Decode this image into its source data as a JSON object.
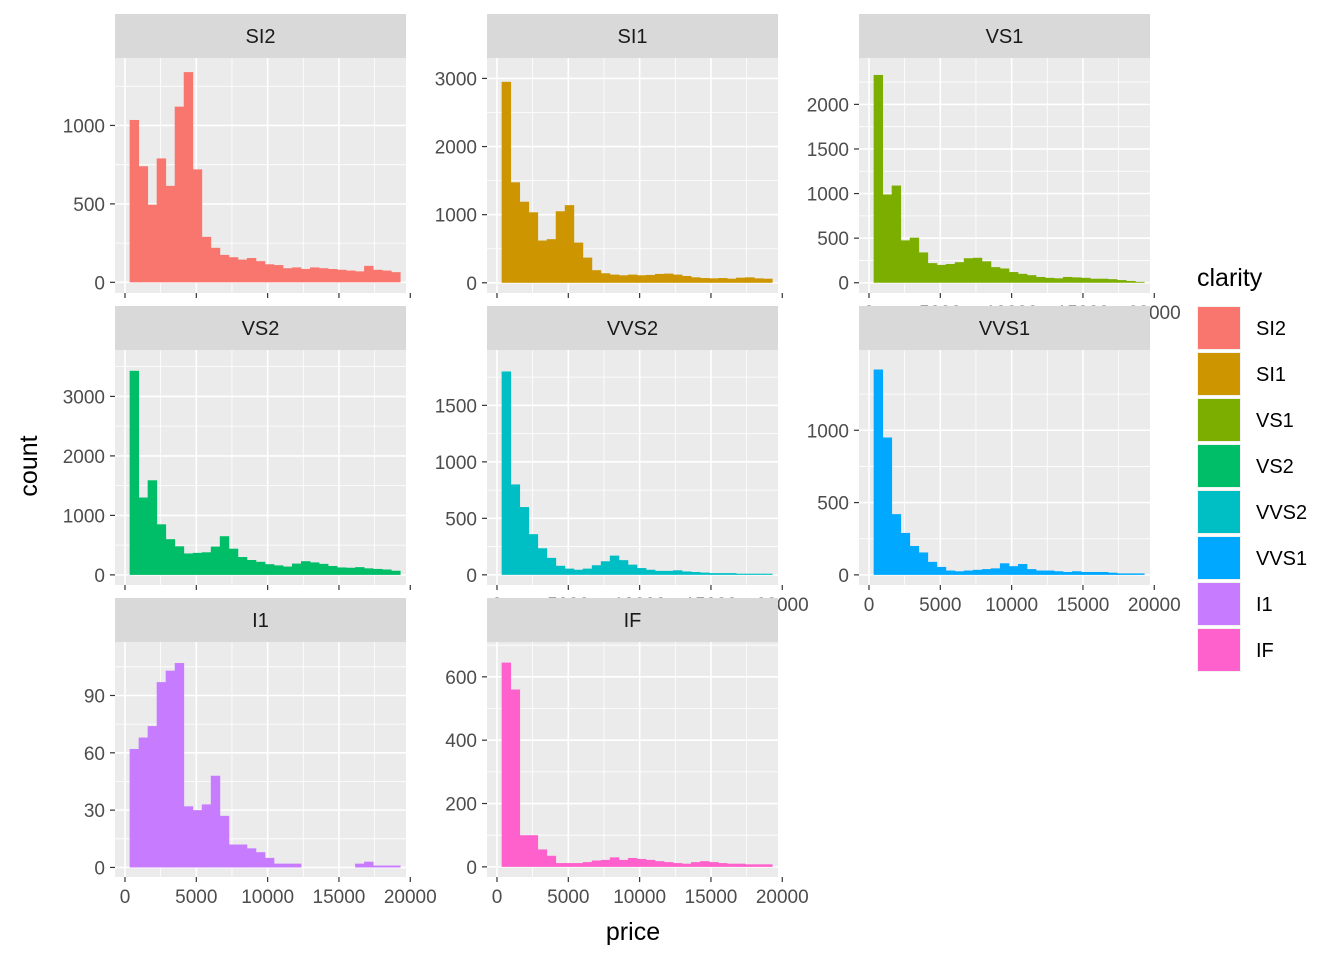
{
  "chart_data": {
    "type": "bar",
    "subtype": "faceted-histogram",
    "xlabel": "price",
    "ylabel": "count",
    "xlim": [
      -700,
      19700
    ],
    "x_ticks": [
      0,
      5000,
      10000,
      15000,
      20000
    ],
    "bin_start": 326,
    "bin_width": 632.2,
    "legend": {
      "title": "clarity",
      "placement": "right",
      "entries": [
        {
          "name": "SI2",
          "color": "#F8766D"
        },
        {
          "name": "SI1",
          "color": "#CD9600"
        },
        {
          "name": "VS1",
          "color": "#7CAE00"
        },
        {
          "name": "VS2",
          "color": "#00BE67"
        },
        {
          "name": "VVS2",
          "color": "#00BFC4"
        },
        {
          "name": "VVS1",
          "color": "#00A9FF"
        },
        {
          "name": "I1",
          "color": "#C77CFF"
        },
        {
          "name": "IF",
          "color": "#FF61CC"
        }
      ]
    },
    "facets": [
      {
        "name": "SI2",
        "color": "#F8766D",
        "ylim": [
          -68,
          1430
        ],
        "y_ticks": [
          0,
          500,
          1000
        ],
        "values": [
          1035,
          740,
          495,
          790,
          615,
          1120,
          1340,
          720,
          290,
          220,
          175,
          160,
          145,
          155,
          135,
          115,
          110,
          90,
          95,
          85,
          95,
          90,
          85,
          80,
          75,
          70,
          105,
          80,
          75,
          65
        ]
      },
      {
        "name": "SI1",
        "color": "#CD9600",
        "ylim": [
          -150,
          3300
        ],
        "y_ticks": [
          0,
          1000,
          2000,
          3000
        ],
        "values": [
          2950,
          1475,
          1190,
          1035,
          620,
          640,
          1050,
          1140,
          590,
          370,
          185,
          140,
          120,
          110,
          120,
          110,
          115,
          130,
          135,
          120,
          100,
          80,
          70,
          65,
          70,
          60,
          75,
          80,
          65,
          60
        ]
      },
      {
        "name": "VS1",
        "color": "#7CAE00",
        "ylim": [
          -115,
          2520
        ],
        "y_ticks": [
          0,
          500,
          1000,
          1500,
          2000
        ],
        "values": [
          2330,
          990,
          1090,
          475,
          505,
          340,
          220,
          200,
          210,
          230,
          275,
          280,
          240,
          175,
          160,
          120,
          100,
          85,
          65,
          55,
          50,
          65,
          60,
          55,
          45,
          45,
          40,
          30,
          20,
          10
        ]
      },
      {
        "name": "VS2",
        "color": "#00BE67",
        "ylim": [
          -170,
          3780
        ],
        "y_ticks": [
          0,
          1000,
          2000,
          3000
        ],
        "values": [
          3430,
          1300,
          1590,
          850,
          600,
          480,
          360,
          370,
          380,
          475,
          650,
          440,
          300,
          250,
          220,
          180,
          160,
          140,
          190,
          230,
          210,
          185,
          150,
          125,
          120,
          130,
          110,
          100,
          90,
          70
        ]
      },
      {
        "name": "VVS2",
        "color": "#00BFC4",
        "ylim": [
          -90,
          1990
        ],
        "y_ticks": [
          0,
          500,
          1000,
          1500
        ],
        "values": [
          1800,
          800,
          600,
          360,
          235,
          150,
          80,
          55,
          45,
          55,
          85,
          120,
          170,
          130,
          90,
          60,
          45,
          35,
          35,
          40,
          30,
          25,
          20,
          15,
          15,
          15,
          10,
          10,
          10,
          10
        ]
      },
      {
        "name": "VVS1",
        "color": "#00A9FF",
        "ylim": [
          -70,
          1555
        ],
        "y_ticks": [
          0,
          500,
          1000
        ],
        "values": [
          1420,
          950,
          420,
          290,
          200,
          155,
          90,
          55,
          30,
          25,
          30,
          35,
          40,
          45,
          80,
          60,
          75,
          40,
          30,
          30,
          25,
          20,
          25,
          20,
          20,
          20,
          15,
          10,
          10,
          10
        ]
      },
      {
        "name": "I1",
        "color": "#C77CFF",
        "ylim": [
          -5,
          118
        ],
        "y_ticks": [
          0,
          30,
          60,
          90
        ],
        "values": [
          62,
          68,
          74,
          97,
          103,
          107,
          32,
          30,
          33,
          48,
          27,
          12,
          12,
          10,
          8,
          5,
          2,
          2,
          2,
          0,
          0,
          0,
          0,
          0,
          0,
          2,
          3,
          1,
          1,
          1
        ]
      },
      {
        "name": "IF",
        "color": "#FF61CC",
        "ylim": [
          -32,
          710
        ],
        "y_ticks": [
          0,
          200,
          400,
          600
        ],
        "values": [
          645,
          560,
          100,
          100,
          55,
          35,
          12,
          12,
          12,
          15,
          20,
          22,
          30,
          22,
          28,
          25,
          22,
          18,
          15,
          12,
          10,
          15,
          18,
          15,
          12,
          10,
          10,
          8,
          8,
          8
        ]
      }
    ]
  }
}
